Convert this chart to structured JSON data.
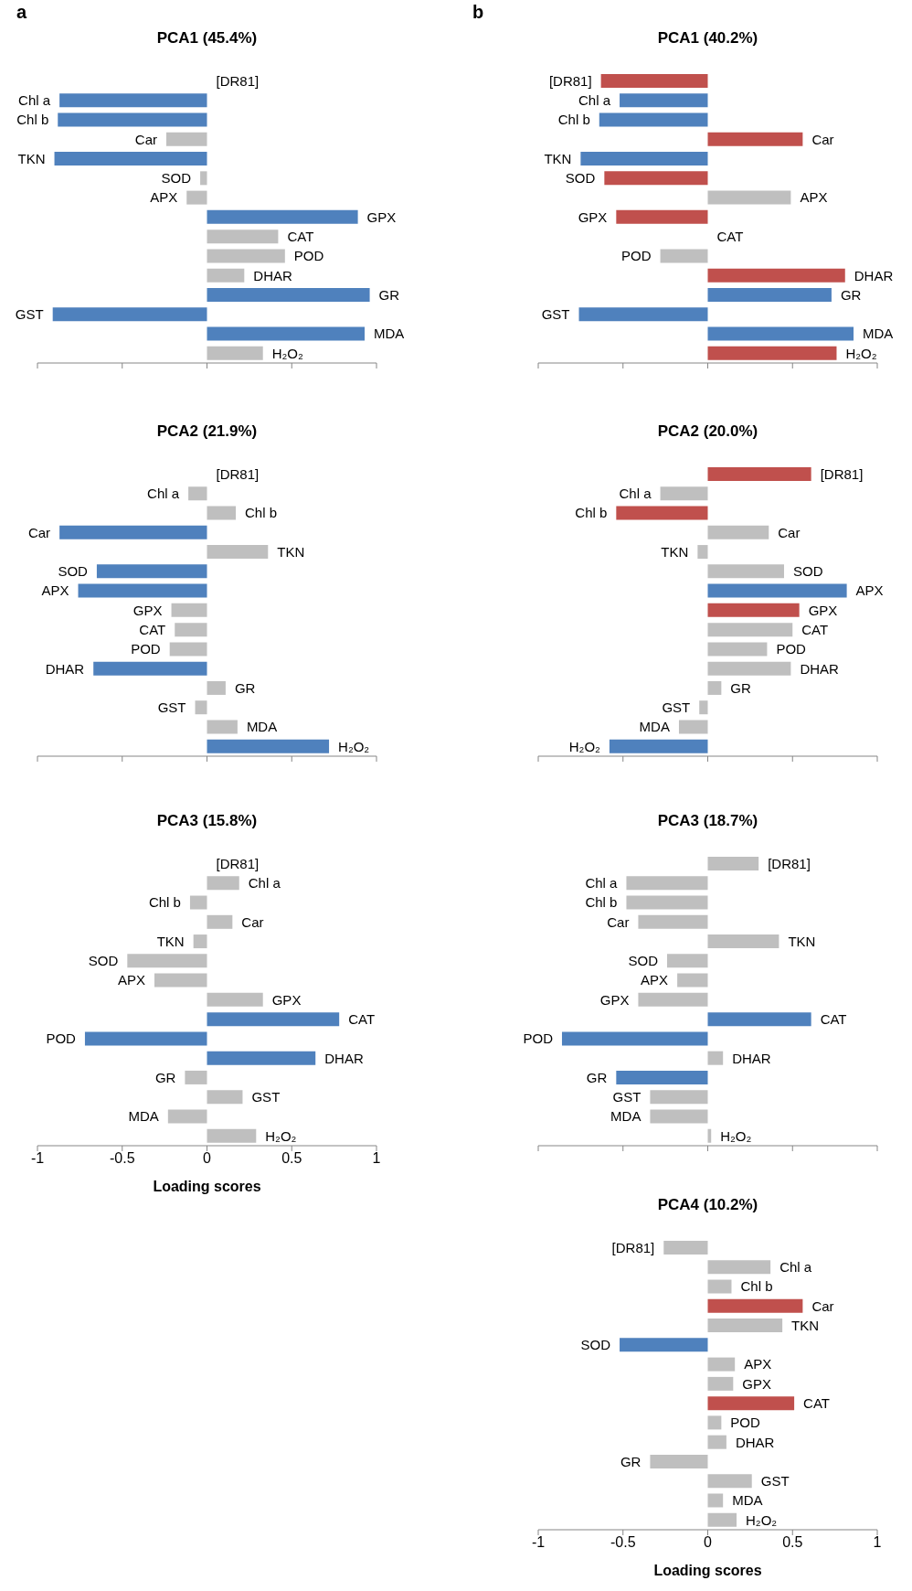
{
  "chart_data": [
    {
      "type": "bar",
      "orientation": "horizontal",
      "title": "PCA1 (45.4%)",
      "annotations": [
        "a"
      ],
      "categories": [
        "[DR81]",
        "Chl a",
        "Chl b",
        "Car",
        "TKN",
        "SOD",
        "APX",
        "GPX",
        "CAT",
        "POD",
        "DHAR",
        "GR",
        "GST",
        "MDA",
        "H₂O₂"
      ],
      "values": [
        0,
        -0.87,
        -0.88,
        -0.24,
        -0.9,
        -0.04,
        -0.12,
        0.89,
        0.42,
        0.46,
        0.22,
        0.96,
        -0.91,
        0.93,
        0.33
      ],
      "colors": [
        "#bfbfbf",
        "#4f81bd",
        "#4f81bd",
        "#bfbfbf",
        "#4f81bd",
        "#bfbfbf",
        "#bfbfbf",
        "#4f81bd",
        "#bfbfbf",
        "#bfbfbf",
        "#bfbfbf",
        "#4f81bd",
        "#4f81bd",
        "#4f81bd",
        "#bfbfbf"
      ],
      "xlim": [
        -1,
        1
      ],
      "xticks": [
        -1,
        -0.5,
        0,
        0.5,
        1
      ],
      "tick_labels": false
    },
    {
      "type": "bar",
      "orientation": "horizontal",
      "title": "PCA2 (21.9%)",
      "categories": [
        "[DR81]",
        "Chl a",
        "Chl b",
        "Car",
        "TKN",
        "SOD",
        "APX",
        "GPX",
        "CAT",
        "POD",
        "DHAR",
        "GR",
        "GST",
        "MDA",
        "H₂O₂"
      ],
      "values": [
        0,
        -0.11,
        0.17,
        -0.87,
        0.36,
        -0.65,
        -0.76,
        -0.21,
        -0.19,
        -0.22,
        -0.67,
        0.11,
        -0.07,
        0.18,
        0.72
      ],
      "colors": [
        "#bfbfbf",
        "#bfbfbf",
        "#bfbfbf",
        "#4f81bd",
        "#bfbfbf",
        "#4f81bd",
        "#4f81bd",
        "#bfbfbf",
        "#bfbfbf",
        "#bfbfbf",
        "#4f81bd",
        "#bfbfbf",
        "#bfbfbf",
        "#bfbfbf",
        "#4f81bd"
      ],
      "xlim": [
        -1,
        1
      ],
      "xticks": [
        -1,
        -0.5,
        0,
        0.5,
        1
      ],
      "tick_labels": false
    },
    {
      "type": "bar",
      "orientation": "horizontal",
      "title": "PCA3 (15.8%)",
      "xlabel": "Loading scores",
      "categories": [
        "[DR81]",
        "Chl a",
        "Chl b",
        "Car",
        "TKN",
        "SOD",
        "APX",
        "GPX",
        "CAT",
        "POD",
        "DHAR",
        "GR",
        "GST",
        "MDA",
        "H₂O₂"
      ],
      "values": [
        0,
        0.19,
        -0.1,
        0.15,
        -0.08,
        -0.47,
        -0.31,
        0.33,
        0.78,
        -0.72,
        0.64,
        -0.13,
        0.21,
        -0.23,
        0.29
      ],
      "colors": [
        "#bfbfbf",
        "#bfbfbf",
        "#bfbfbf",
        "#bfbfbf",
        "#bfbfbf",
        "#bfbfbf",
        "#bfbfbf",
        "#bfbfbf",
        "#4f81bd",
        "#4f81bd",
        "#4f81bd",
        "#bfbfbf",
        "#bfbfbf",
        "#bfbfbf",
        "#bfbfbf"
      ],
      "xlim": [
        -1,
        1
      ],
      "xticks": [
        -1,
        -0.5,
        0,
        0.5,
        1
      ],
      "tick_labels": "x"
    },
    {
      "type": "bar",
      "orientation": "horizontal",
      "title": "PCA1 (40.2%)",
      "annotations": [
        "b"
      ],
      "categories": [
        "[DR81]",
        "Chl a",
        "Chl b",
        "Car",
        "TKN",
        "SOD",
        "APX",
        "GPX",
        "CAT",
        "POD",
        "DHAR",
        "GR",
        "GST",
        "MDA",
        "H₂O₂"
      ],
      "values": [
        -0.63,
        -0.52,
        -0.64,
        0.56,
        -0.75,
        -0.61,
        0.49,
        -0.54,
        0,
        -0.28,
        0.81,
        0.73,
        -0.76,
        0.86,
        0.76
      ],
      "colors": [
        "#c0504d",
        "#4f81bd",
        "#4f81bd",
        "#c0504d",
        "#4f81bd",
        "#c0504d",
        "#bfbfbf",
        "#c0504d",
        "#bfbfbf",
        "#bfbfbf",
        "#c0504d",
        "#4f81bd",
        "#4f81bd",
        "#4f81bd",
        "#c0504d"
      ],
      "xlim": [
        -1,
        1
      ],
      "xticks": [
        -1,
        -0.5,
        0,
        0.5,
        1
      ],
      "tick_labels": false
    },
    {
      "type": "bar",
      "orientation": "horizontal",
      "title": "PCA2 (20.0%)",
      "categories": [
        "[DR81]",
        "Chl a",
        "Chl b",
        "Car",
        "TKN",
        "SOD",
        "APX",
        "GPX",
        "CAT",
        "POD",
        "DHAR",
        "GR",
        "GST",
        "MDA",
        "H₂O₂"
      ],
      "values": [
        0.61,
        -0.28,
        -0.54,
        0.36,
        -0.06,
        0.45,
        0.82,
        0.54,
        0.5,
        0.35,
        0.49,
        0.08,
        -0.05,
        -0.17,
        -0.58
      ],
      "colors": [
        "#c0504d",
        "#bfbfbf",
        "#c0504d",
        "#bfbfbf",
        "#bfbfbf",
        "#bfbfbf",
        "#4f81bd",
        "#c0504d",
        "#bfbfbf",
        "#bfbfbf",
        "#bfbfbf",
        "#bfbfbf",
        "#bfbfbf",
        "#bfbfbf",
        "#4f81bd"
      ],
      "xlim": [
        -1,
        1
      ],
      "xticks": [
        -1,
        -0.5,
        0,
        0.5,
        1
      ],
      "tick_labels": false
    },
    {
      "type": "bar",
      "orientation": "horizontal",
      "title": "PCA3 (18.7%)",
      "categories": [
        "[DR81]",
        "Chl a",
        "Chl b",
        "Car",
        "TKN",
        "SOD",
        "APX",
        "GPX",
        "CAT",
        "POD",
        "DHAR",
        "GR",
        "GST",
        "MDA",
        "H₂O₂"
      ],
      "values": [
        0.3,
        -0.48,
        -0.48,
        -0.41,
        0.42,
        -0.24,
        -0.18,
        -0.41,
        0.61,
        -0.86,
        0.09,
        -0.54,
        -0.34,
        -0.34,
        0.02
      ],
      "colors": [
        "#bfbfbf",
        "#bfbfbf",
        "#bfbfbf",
        "#bfbfbf",
        "#bfbfbf",
        "#bfbfbf",
        "#bfbfbf",
        "#bfbfbf",
        "#4f81bd",
        "#4f81bd",
        "#bfbfbf",
        "#4f81bd",
        "#bfbfbf",
        "#bfbfbf",
        "#bfbfbf"
      ],
      "xlim": [
        -1,
        1
      ],
      "xticks": [
        -1,
        -0.5,
        0,
        0.5,
        1
      ],
      "tick_labels": false
    },
    {
      "type": "bar",
      "orientation": "horizontal",
      "title": "PCA4 (10.2%)",
      "xlabel": "Loading scores",
      "categories": [
        "[DR81]",
        "Chl a",
        "Chl b",
        "Car",
        "TKN",
        "SOD",
        "APX",
        "GPX",
        "CAT",
        "POD",
        "DHAR",
        "GR",
        "GST",
        "MDA",
        "H₂O₂"
      ],
      "values": [
        -0.26,
        0.37,
        0.14,
        0.56,
        0.44,
        -0.52,
        0.16,
        0.15,
        0.51,
        0.08,
        0.11,
        -0.34,
        0.26,
        0.09,
        0.17
      ],
      "colors": [
        "#bfbfbf",
        "#bfbfbf",
        "#bfbfbf",
        "#c0504d",
        "#bfbfbf",
        "#4f81bd",
        "#bfbfbf",
        "#bfbfbf",
        "#c0504d",
        "#bfbfbf",
        "#bfbfbf",
        "#bfbfbf",
        "#bfbfbf",
        "#bfbfbf",
        "#bfbfbf"
      ],
      "xlim": [
        -1,
        1
      ],
      "xticks": [
        -1,
        -0.5,
        0,
        0.5,
        1
      ],
      "tick_labels": "x"
    }
  ]
}
